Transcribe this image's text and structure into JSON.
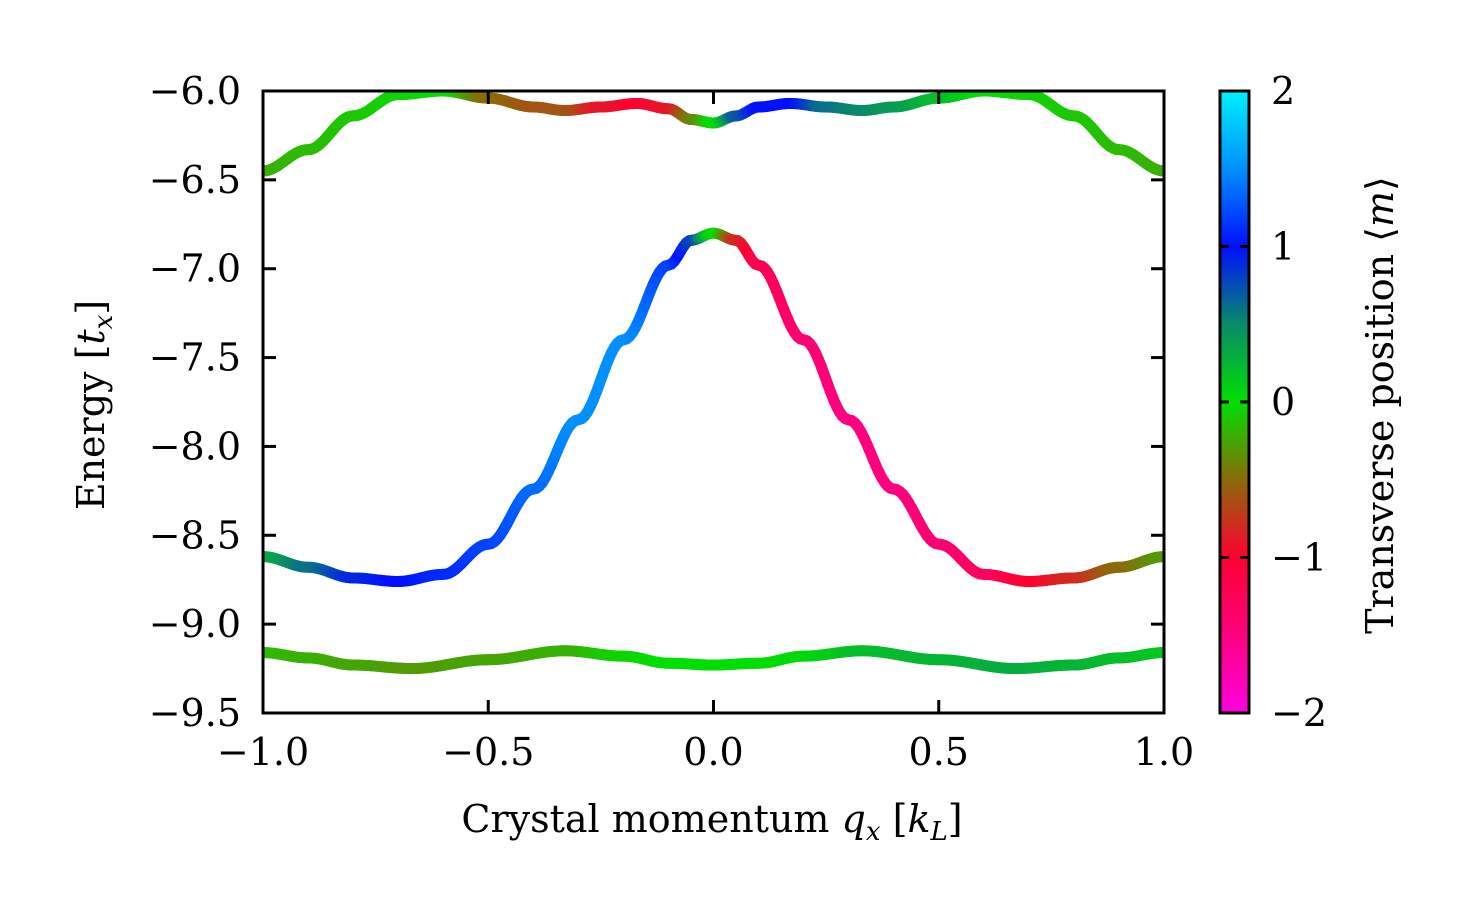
{
  "chart_data": {
    "type": "line",
    "xlabel": {
      "pre": "Crystal momentum ",
      "var": "q",
      "sub": "x",
      "post_open": " [",
      "unit": "k",
      "unit_sub": "L",
      "post_close": "]"
    },
    "ylabel": {
      "pre": "Energy [",
      "var": "t",
      "sub": "x",
      "post": "]"
    },
    "xlim": [
      -1.0,
      1.0
    ],
    "ylim": [
      -9.5,
      -6.0
    ],
    "xticks": [
      -1.0,
      -0.5,
      0.0,
      0.5,
      1.0
    ],
    "xtick_labels": [
      "−1.0",
      "−0.5",
      "0.0",
      "0.5",
      "1.0"
    ],
    "yticks": [
      -6.0,
      -6.5,
      -7.0,
      -7.5,
      -8.0,
      -8.5,
      -9.0,
      -9.5
    ],
    "ytick_labels": [
      "−6.0",
      "−6.5",
      "−7.0",
      "−7.5",
      "−8.0",
      "−8.5",
      "−9.0",
      "−9.5"
    ],
    "colorbar": {
      "label_pre": "Transverse position ⟨",
      "label_var": "m",
      "label_post": "⟩",
      "range": [
        -2,
        2
      ],
      "ticks": [
        2,
        1,
        0,
        -1,
        -2
      ],
      "tick_labels": [
        "2",
        "1",
        "0",
        "−1",
        "−2"
      ],
      "stops": [
        {
          "v": -2.0,
          "color": "#ff00e0"
        },
        {
          "v": -1.5,
          "color": "#ff0080"
        },
        {
          "v": -1.0,
          "color": "#ff0030"
        },
        {
          "v": -0.5,
          "color": "#8a6a0a"
        },
        {
          "v": 0.0,
          "color": "#00e000"
        },
        {
          "v": 0.5,
          "color": "#0a8a6a"
        },
        {
          "v": 1.0,
          "color": "#0010ff"
        },
        {
          "v": 1.5,
          "color": "#0090ff"
        },
        {
          "v": 2.0,
          "color": "#00f0ff"
        }
      ]
    },
    "series": [
      {
        "x": [
          -1.0,
          -0.9,
          -0.8,
          -0.7,
          -0.6,
          -0.5,
          -0.4,
          -0.33,
          -0.25,
          -0.17,
          -0.1,
          -0.05,
          0.0,
          0.05,
          0.1,
          0.17,
          0.25,
          0.33,
          0.4,
          0.5,
          0.6,
          0.7,
          0.8,
          0.9,
          1.0
        ],
        "y": [
          -6.45,
          -6.33,
          -6.14,
          -6.02,
          -6.0,
          -6.04,
          -6.09,
          -6.11,
          -6.09,
          -6.07,
          -6.1,
          -6.16,
          -6.18,
          -6.14,
          -6.09,
          -6.07,
          -6.09,
          -6.11,
          -6.09,
          -6.04,
          -6.0,
          -6.02,
          -6.14,
          -6.33,
          -6.45
        ],
        "m": [
          -0.2,
          -0.15,
          -0.1,
          -0.05,
          0.0,
          -0.5,
          -0.6,
          -0.6,
          -0.9,
          -1.0,
          -0.9,
          -0.4,
          0.0,
          0.7,
          1.0,
          1.0,
          0.6,
          0.5,
          0.4,
          0.2,
          0.0,
          -0.05,
          -0.1,
          -0.15,
          -0.2
        ]
      },
      {
        "x": [
          -1.0,
          -0.9,
          -0.8,
          -0.7,
          -0.6,
          -0.5,
          -0.4,
          -0.3,
          -0.2,
          -0.1,
          -0.05,
          0.0,
          0.05,
          0.1,
          0.2,
          0.3,
          0.4,
          0.5,
          0.6,
          0.7,
          0.8,
          0.9,
          1.0
        ],
        "y": [
          -8.62,
          -8.68,
          -8.74,
          -8.76,
          -8.72,
          -8.55,
          -8.24,
          -7.85,
          -7.4,
          -6.98,
          -6.84,
          -6.8,
          -6.84,
          -6.98,
          -7.4,
          -7.85,
          -8.24,
          -8.55,
          -8.72,
          -8.76,
          -8.74,
          -8.68,
          -8.62
        ],
        "m": [
          0.3,
          0.6,
          0.9,
          1.0,
          1.1,
          1.2,
          1.35,
          1.5,
          1.5,
          1.2,
          0.8,
          0.0,
          -0.8,
          -1.2,
          -1.4,
          -1.5,
          -1.5,
          -1.4,
          -1.3,
          -1.0,
          -0.8,
          -0.5,
          -0.3
        ]
      },
      {
        "x": [
          -1.0,
          -0.9,
          -0.8,
          -0.67,
          -0.5,
          -0.33,
          -0.2,
          -0.1,
          0.0,
          0.1,
          0.2,
          0.33,
          0.5,
          0.67,
          0.8,
          0.9,
          1.0
        ],
        "y": [
          -9.16,
          -9.19,
          -9.23,
          -9.25,
          -9.2,
          -9.15,
          -9.18,
          -9.22,
          -9.23,
          -9.22,
          -9.18,
          -9.15,
          -9.2,
          -9.25,
          -9.23,
          -9.19,
          -9.16
        ],
        "m": [
          -0.15,
          -0.2,
          -0.25,
          -0.3,
          -0.25,
          -0.2,
          -0.05,
          0.0,
          0.0,
          0.0,
          0.05,
          0.2,
          0.25,
          0.3,
          0.25,
          0.2,
          0.15
        ]
      }
    ]
  }
}
